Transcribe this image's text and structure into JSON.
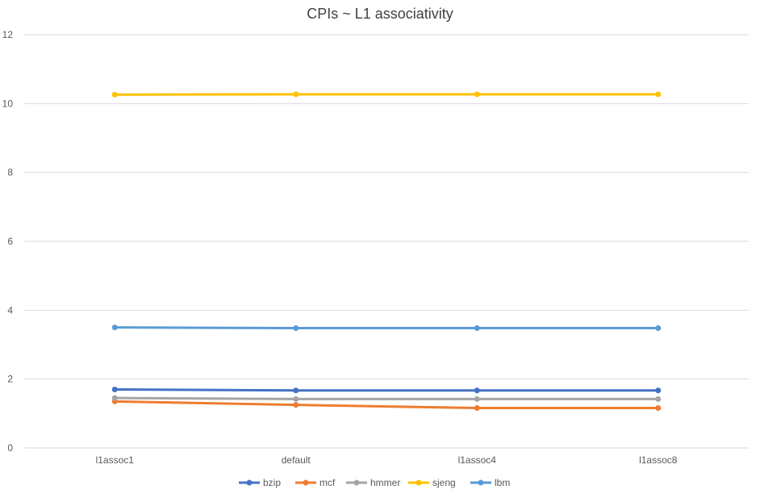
{
  "chart_data": {
    "type": "line",
    "title": "CPIs ~ L1 associativity",
    "xlabel": "",
    "ylabel": "",
    "categories": [
      "l1assoc1",
      "default",
      "l1assoc4",
      "l1assoc8"
    ],
    "ylim": [
      0,
      12
    ],
    "yticks": [
      0,
      2,
      4,
      6,
      8,
      10,
      12
    ],
    "grid": true,
    "legend_position": "bottom",
    "series": [
      {
        "name": "bzip",
        "color": "#4472c4",
        "values": [
          1.7,
          1.67,
          1.67,
          1.67
        ]
      },
      {
        "name": "mcf",
        "color": "#ed7d31",
        "values": [
          1.35,
          1.25,
          1.16,
          1.16
        ]
      },
      {
        "name": "hmmer",
        "color": "#a5a5a5",
        "values": [
          1.45,
          1.42,
          1.42,
          1.42
        ]
      },
      {
        "name": "sjeng",
        "color": "#ffc000",
        "values": [
          10.26,
          10.27,
          10.27,
          10.27
        ]
      },
      {
        "name": "lbm",
        "color": "#5b9bd5",
        "values": [
          3.5,
          3.48,
          3.48,
          3.48
        ]
      }
    ]
  }
}
